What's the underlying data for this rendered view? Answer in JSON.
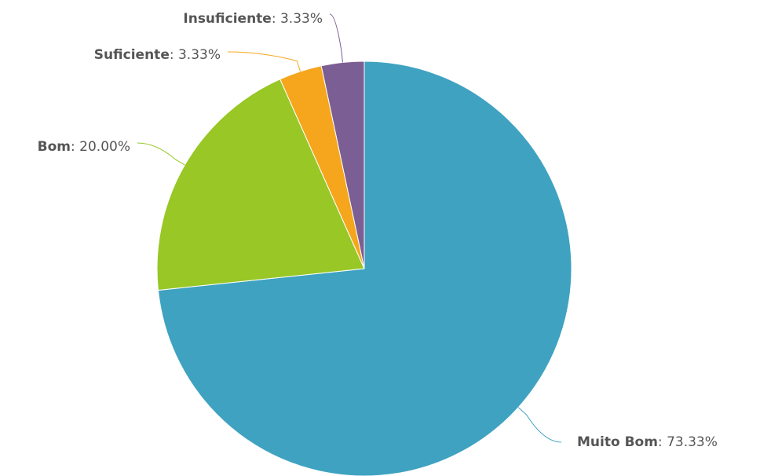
{
  "chart_data": {
    "type": "pie",
    "categories": [
      "Muito Bom",
      "Bom",
      "Suficiente",
      "Insuficiente"
    ],
    "values": [
      73.33,
      20.0,
      3.33,
      3.33
    ],
    "value_labels": [
      "73.33%",
      "20.00%",
      "3.33%",
      "3.33%"
    ],
    "label_separator": ": ",
    "colors": [
      "#3fa2c1",
      "#98c726",
      "#f5a61d",
      "#7b5e93"
    ]
  }
}
